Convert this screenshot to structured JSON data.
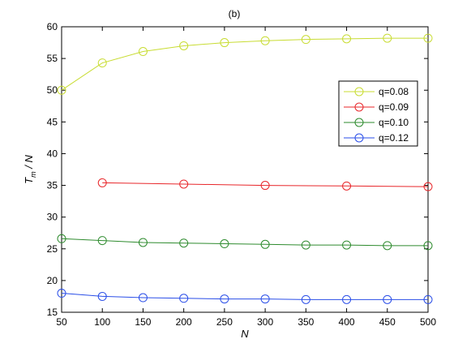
{
  "chart_data": {
    "type": "line",
    "title": "(b)",
    "xlabel": "N",
    "ylabel_main": "T",
    "ylabel_sub": "m",
    "ylabel_rest": " / N",
    "xlim": [
      50,
      500
    ],
    "ylim": [
      15,
      60
    ],
    "xticks": [
      50,
      100,
      150,
      200,
      250,
      300,
      350,
      400,
      450,
      500
    ],
    "yticks": [
      15,
      20,
      25,
      30,
      35,
      40,
      45,
      50,
      55,
      60
    ],
    "grid": false,
    "legend_position": "right",
    "marker": "circle",
    "series": [
      {
        "name": "q=0.08",
        "color": "#c8dc32",
        "x": [
          50,
          100,
          150,
          200,
          250,
          300,
          350,
          400,
          450,
          500
        ],
        "y": [
          50.0,
          54.3,
          56.1,
          57.0,
          57.5,
          57.8,
          58.0,
          58.1,
          58.2,
          58.2
        ]
      },
      {
        "name": "q=0.09",
        "color": "#e8262a",
        "x": [
          100,
          200,
          300,
          400,
          500
        ],
        "y": [
          35.4,
          35.2,
          35.0,
          34.9,
          34.8
        ]
      },
      {
        "name": "q=0.10",
        "color": "#2e8b2e",
        "x": [
          50,
          100,
          150,
          200,
          250,
          300,
          350,
          400,
          450,
          500
        ],
        "y": [
          26.6,
          26.3,
          26.0,
          25.9,
          25.8,
          25.7,
          25.6,
          25.6,
          25.5,
          25.5
        ]
      },
      {
        "name": "q=0.12",
        "color": "#2a4ee8",
        "x": [
          50,
          100,
          150,
          200,
          250,
          300,
          350,
          400,
          450,
          500
        ],
        "y": [
          18.0,
          17.5,
          17.3,
          17.2,
          17.1,
          17.1,
          17.0,
          17.0,
          17.0,
          17.0
        ]
      }
    ]
  }
}
